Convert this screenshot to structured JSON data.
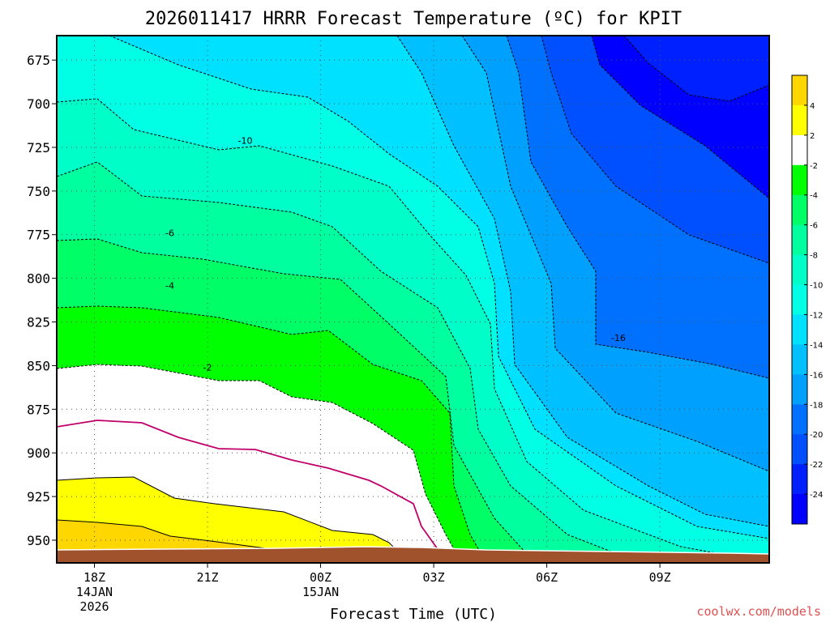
{
  "chart_data": {
    "type": "contour",
    "title": "2026011417 HRRR Forecast Temperature (ºC) for KPIT",
    "xlabel": "Forecast Time (UTC)",
    "ylabel": "",
    "x_ticks": [
      {
        "label": "18Z",
        "sub1": "14JAN",
        "sub2": "2026",
        "hour": 18
      },
      {
        "label": "21Z",
        "sub1": "",
        "sub2": "",
        "hour": 21
      },
      {
        "label": "00Z",
        "sub1": "15JAN",
        "sub2": "",
        "hour": 24
      },
      {
        "label": "03Z",
        "sub1": "",
        "sub2": "",
        "hour": 27
      },
      {
        "label": "06Z",
        "sub1": "",
        "sub2": "",
        "hour": 30
      },
      {
        "label": "09Z",
        "sub1": "",
        "sub2": "",
        "hour": 33
      }
    ],
    "xlim_hours": [
      17,
      35.9
    ],
    "y_ticks": [
      675,
      700,
      725,
      750,
      775,
      800,
      825,
      850,
      875,
      900,
      925,
      950
    ],
    "y_unit": "hPa",
    "ylim_hPa": [
      661,
      963
    ],
    "grid": true,
    "contour_labels": [
      {
        "text": "-10",
        "hour": 22.0,
        "p": 721
      },
      {
        "text": "-6",
        "hour": 20.0,
        "p": 774
      },
      {
        "text": "-4",
        "hour": 20.0,
        "p": 804
      },
      {
        "text": "-2",
        "hour": 21.0,
        "p": 851
      },
      {
        "text": "-16",
        "hour": 31.9,
        "p": 834
      }
    ],
    "colorbar": {
      "labels": [
        "4",
        "2",
        "-2",
        "-4",
        "-6",
        "-8",
        "-10",
        "-12",
        "-14",
        "-16",
        "-18",
        "-20",
        "-22",
        "-24"
      ],
      "colors": [
        "#ffd700",
        "#ffff00",
        "#ffffff",
        "#00ff00",
        "#00ff66",
        "#00ff9f",
        "#00ffc8",
        "#00ffe5",
        "#00e0ff",
        "#00c0ff",
        "#00a0ff",
        "#0070ff",
        "#0050ff",
        "#0020ff",
        "#0000ff"
      ]
    },
    "credit": "coolwx.com/models"
  }
}
